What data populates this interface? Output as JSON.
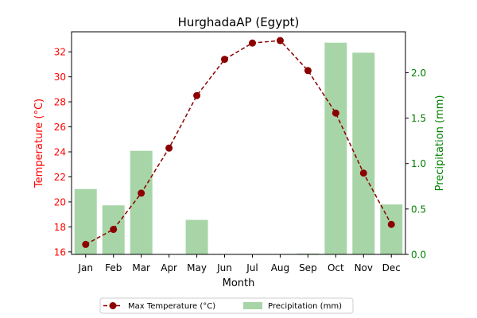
{
  "chart_data": {
    "type": "bar+line",
    "title": "HurghadaAP (Egypt)",
    "xlabel": "Month",
    "ylabel_left": "Temperature (°C)",
    "ylabel_right": "Precipitation (mm)",
    "categories": [
      "Jan",
      "Feb",
      "Mar",
      "Apr",
      "May",
      "Jun",
      "Jul",
      "Aug",
      "Sep",
      "Oct",
      "Nov",
      "Dec"
    ],
    "ylim_left": [
      15.8,
      33.6
    ],
    "ylim_right": [
      0.0,
      2.45
    ],
    "yticks_left": [
      16,
      18,
      20,
      22,
      24,
      26,
      28,
      30,
      32
    ],
    "yticks_right": [
      0.0,
      0.5,
      1.0,
      1.5,
      2.0
    ],
    "ytick_labels_right": [
      "0.0",
      "0.5",
      "1.0",
      "1.5",
      "2.0"
    ],
    "legend_position": "bottom-center",
    "grid": false,
    "series": [
      {
        "name": "Max Temperature (°C)",
        "kind": "line",
        "axis": "left",
        "color": "#8b0000",
        "values": [
          16.6,
          17.8,
          20.7,
          24.3,
          28.5,
          31.4,
          32.7,
          32.9,
          30.5,
          27.1,
          22.3,
          18.2
        ]
      },
      {
        "name": "Precipitation (mm)",
        "kind": "bar",
        "axis": "right",
        "color": "#a8d5a8",
        "values": [
          0.72,
          0.54,
          1.14,
          0.0,
          0.38,
          0.0,
          0.0,
          0.0,
          0.01,
          2.33,
          2.22,
          0.55
        ]
      }
    ],
    "colors": {
      "left_axis": "#ff0000",
      "right_axis": "#008000",
      "line": "#8b0000",
      "bar": "#a8d5a8"
    }
  }
}
